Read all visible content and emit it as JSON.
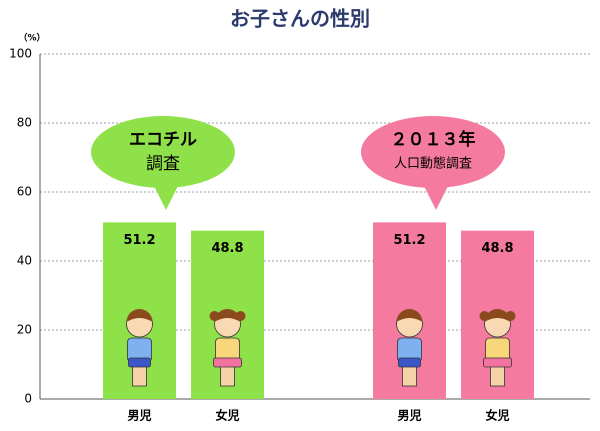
{
  "chart_data": {
    "type": "bar",
    "title": "お子さんの性別",
    "y_unit": "（%）",
    "ylim": [
      0,
      100
    ],
    "yticks": [
      0,
      20,
      40,
      60,
      80,
      100
    ],
    "grid": true,
    "series": [
      {
        "callout": [
          "エコチル",
          "調査"
        ],
        "color": "#8fe14a",
        "categories": [
          "男児",
          "女児"
        ],
        "values": [
          51.2,
          48.8
        ]
      },
      {
        "callout": [
          "２０１３年",
          "人口動態調査"
        ],
        "color": "#f57a9f",
        "categories": [
          "男児",
          "女児"
        ],
        "values": [
          51.2,
          48.8
        ]
      }
    ]
  }
}
